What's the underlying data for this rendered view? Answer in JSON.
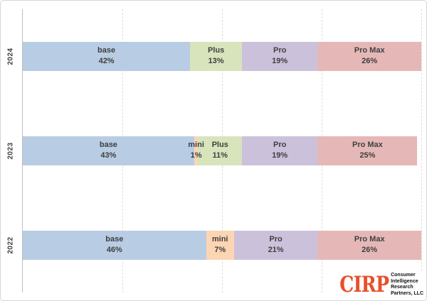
{
  "chart_data": {
    "type": "bar",
    "variant": "horizontal-stacked",
    "title": "",
    "xlabel": "",
    "ylabel": "",
    "xlim": [
      0,
      100
    ],
    "grid": "dashed-vertical",
    "gridlines_pct": [
      25,
      50,
      75,
      100
    ],
    "unit": "%",
    "categories": [
      "2024",
      "2023",
      "2022"
    ],
    "rows": [
      {
        "year": "2024",
        "segments": [
          {
            "name": "base",
            "pct": 42
          },
          {
            "name": "Plus",
            "pct": 13
          },
          {
            "name": "Pro",
            "pct": 19
          },
          {
            "name": "Pro Max",
            "pct": 26
          }
        ]
      },
      {
        "year": "2023",
        "segments": [
          {
            "name": "base",
            "pct": 43
          },
          {
            "name": "mini",
            "pct": 1
          },
          {
            "name": "Plus",
            "pct": 11
          },
          {
            "name": "Pro",
            "pct": 19
          },
          {
            "name": "Pro Max",
            "pct": 25
          }
        ]
      },
      {
        "year": "2022",
        "segments": [
          {
            "name": "base",
            "pct": 46
          },
          {
            "name": "mini",
            "pct": 7
          },
          {
            "name": "Pro",
            "pct": 21
          },
          {
            "name": "Pro Max",
            "pct": 26
          }
        ]
      }
    ],
    "colors": {
      "base": "#b8cce4",
      "mini": "#fcd5b4",
      "Plus": "#d7e4bc",
      "Pro": "#ccc1da",
      "Pro Max": "#e5b8b7"
    }
  },
  "logo": {
    "brand": "CIRP",
    "brand_color": "#e8502b",
    "lines": [
      "Consumer",
      "Intelligence",
      "Research",
      "Partners, LLC"
    ]
  }
}
